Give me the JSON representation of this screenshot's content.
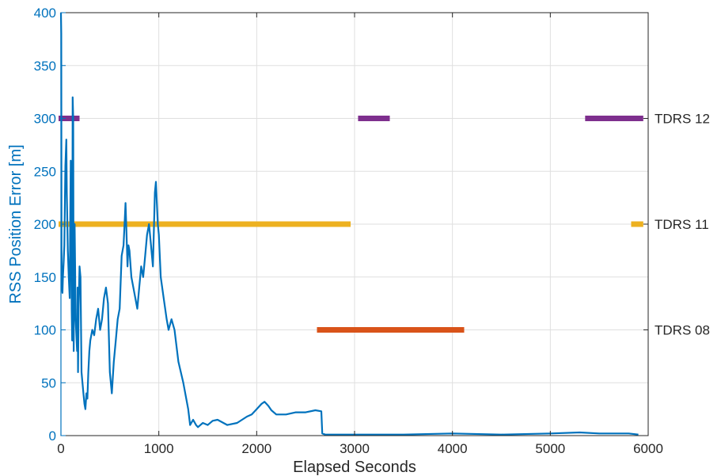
{
  "chart_data": {
    "type": "line",
    "title": "",
    "xlabel": "Elapsed Seconds",
    "ylabel": "RSS Position Error [m]",
    "xlim": [
      0,
      6000
    ],
    "ylim": [
      0,
      400
    ],
    "grid": true,
    "x_ticks": [
      0,
      1000,
      2000,
      3000,
      4000,
      5000,
      6000
    ],
    "y_ticks": [
      0,
      50,
      100,
      150,
      200,
      250,
      300,
      350,
      400
    ],
    "right_axis_labels": [
      {
        "label": "TDRS 12",
        "y": 300
      },
      {
        "label": "TDRS 11",
        "y": 200
      },
      {
        "label": "TDRS 08",
        "y": 100
      }
    ],
    "colors": {
      "error_line": "#0072BD",
      "tdrs12": "#7E2F8E",
      "tdrs11": "#EDB120",
      "tdrs08": "#D95319",
      "grid": "#dfdfdf",
      "axis": "#262626"
    },
    "series": [
      {
        "kind": "line",
        "x": [
          0,
          3,
          6,
          10,
          15,
          20,
          28,
          35,
          45,
          55,
          60,
          70,
          80,
          90,
          95,
          100,
          105,
          110,
          115,
          120,
          125,
          130,
          135,
          140,
          145,
          150,
          155,
          160,
          165,
          170,
          175,
          180,
          185,
          190,
          200,
          210,
          220,
          230,
          240,
          250,
          260,
          270,
          280,
          290,
          300,
          320,
          340,
          360,
          380,
          400,
          420,
          440,
          460,
          480,
          500,
          520,
          540,
          560,
          580,
          600,
          620,
          640,
          650,
          660,
          670,
          680,
          690,
          700,
          720,
          740,
          760,
          780,
          800,
          820,
          840,
          860,
          880,
          900,
          920,
          940,
          960,
          970,
          980,
          990,
          1000,
          1020,
          1050,
          1080,
          1100,
          1130,
          1160,
          1200,
          1250,
          1300,
          1320,
          1350,
          1380,
          1400,
          1450,
          1500,
          1550,
          1600,
          1700,
          1800,
          1900,
          1950,
          2000,
          2050,
          2080,
          2100,
          2120,
          2150,
          2200,
          2300,
          2400,
          2500,
          2600,
          2660,
          2670,
          2700,
          3000,
          3500,
          4000,
          4500,
          5000,
          5300,
          5500,
          5800,
          5900
        ],
        "values": [
          400,
          380,
          180,
          140,
          135,
          150,
          165,
          180,
          255,
          280,
          230,
          175,
          150,
          130,
          200,
          260,
          230,
          120,
          90,
          320,
          300,
          80,
          150,
          200,
          160,
          110,
          100,
          90,
          80,
          140,
          60,
          120,
          140,
          160,
          150,
          60,
          50,
          40,
          30,
          25,
          40,
          35,
          60,
          80,
          90,
          100,
          95,
          110,
          120,
          100,
          110,
          130,
          140,
          125,
          60,
          40,
          70,
          90,
          110,
          120,
          170,
          180,
          200,
          220,
          190,
          160,
          180,
          175,
          150,
          140,
          130,
          120,
          140,
          160,
          150,
          170,
          190,
          200,
          180,
          160,
          230,
          240,
          220,
          200,
          190,
          150,
          130,
          110,
          100,
          110,
          100,
          70,
          50,
          25,
          10,
          15,
          10,
          8,
          12,
          10,
          14,
          15,
          10,
          12,
          18,
          20,
          25,
          30,
          32,
          30,
          28,
          24,
          20,
          20,
          22,
          22,
          24,
          23,
          2,
          1,
          1,
          1,
          2,
          1,
          2,
          3,
          2,
          2,
          1
        ]
      },
      {
        "name": "TDRS 12",
        "kind": "segments",
        "y": 300,
        "segments": [
          [
            0,
            190
          ],
          [
            3060,
            3360
          ],
          [
            5380,
            5950
          ]
        ]
      },
      {
        "name": "TDRS 11",
        "kind": "segments",
        "y": 200,
        "segments": [
          [
            0,
            2960
          ],
          [
            5850,
            5950
          ]
        ]
      },
      {
        "name": "TDRS 08",
        "kind": "segments",
        "y": 100,
        "segments": [
          [
            2640,
            4120
          ]
        ]
      }
    ]
  }
}
